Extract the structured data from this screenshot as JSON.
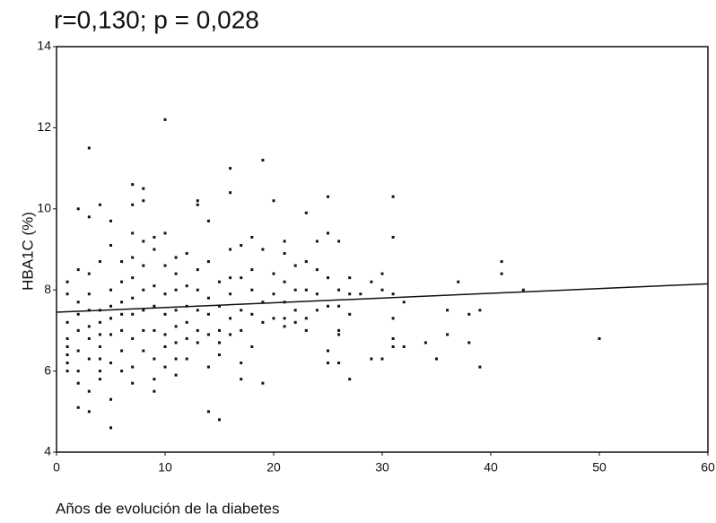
{
  "chart_data": {
    "type": "scatter",
    "title": "r=0,130; p = 0,028",
    "x_label": "Años de evolución de la diabetes",
    "y_label": "HBA1C (%)",
    "xlim": [
      0,
      60
    ],
    "ylim": [
      4,
      14
    ],
    "xticks": [
      0,
      10,
      20,
      30,
      40,
      50,
      60
    ],
    "yticks": [
      4,
      6,
      8,
      10,
      12,
      14
    ],
    "color": "#111111",
    "trend": {
      "x": [
        0,
        60
      ],
      "y": [
        7.45,
        8.15
      ]
    },
    "x": [
      1,
      1,
      1,
      1,
      1,
      1,
      1,
      1,
      2,
      2,
      2,
      2,
      2,
      2,
      2,
      2,
      2,
      3,
      3,
      3,
      3,
      3,
      3,
      3,
      3,
      3,
      3,
      4,
      4,
      4,
      4,
      4,
      4,
      4,
      4,
      4,
      5,
      5,
      5,
      5,
      5,
      5,
      5,
      5,
      5,
      6,
      6,
      6,
      6,
      6,
      6,
      6,
      7,
      7,
      7,
      7,
      7,
      7,
      7,
      7,
      7,
      7,
      8,
      8,
      8,
      8,
      8,
      8,
      8,
      8,
      9,
      9,
      9,
      9,
      9,
      9,
      9,
      9,
      10,
      10,
      10,
      10,
      10,
      10,
      10,
      10,
      11,
      11,
      11,
      11,
      11,
      11,
      11,
      11,
      12,
      12,
      12,
      12,
      12,
      12,
      13,
      13,
      13,
      13,
      13,
      13,
      13,
      14,
      14,
      14,
      14,
      14,
      14,
      14,
      15,
      15,
      15,
      15,
      15,
      15,
      16,
      16,
      16,
      16,
      16,
      16,
      16,
      17,
      17,
      17,
      17,
      17,
      17,
      18,
      18,
      18,
      18,
      18,
      19,
      19,
      19,
      19,
      19,
      20,
      20,
      20,
      20,
      21,
      21,
      21,
      21,
      21,
      21,
      22,
      22,
      22,
      22,
      23,
      23,
      23,
      23,
      23,
      24,
      24,
      24,
      24,
      25,
      25,
      25,
      25,
      25,
      25,
      26,
      26,
      26,
      26,
      26,
      26,
      27,
      27,
      27,
      27,
      28,
      29,
      29,
      30,
      30,
      30,
      31,
      31,
      31,
      31,
      31,
      31,
      32,
      32,
      34,
      35,
      36,
      36,
      37,
      38,
      38,
      39,
      39,
      41,
      41,
      43,
      50
    ],
    "values": [
      8.2,
      7.9,
      6.8,
      6.6,
      6.4,
      6.2,
      6.0,
      7.2,
      10.0,
      8.5,
      7.4,
      7.0,
      6.5,
      6.0,
      5.7,
      5.1,
      7.7,
      11.5,
      9.8,
      8.4,
      7.9,
      7.1,
      6.8,
      6.3,
      5.5,
      5.0,
      7.5,
      10.1,
      8.7,
      7.5,
      7.2,
      6.9,
      6.6,
      6.3,
      6.0,
      5.8,
      9.7,
      9.1,
      8.0,
      7.3,
      6.9,
      6.2,
      5.3,
      4.6,
      7.6,
      8.7,
      8.2,
      7.7,
      7.4,
      7.0,
      6.5,
      6.0,
      10.6,
      10.1,
      9.4,
      8.8,
      8.3,
      7.8,
      7.4,
      6.8,
      6.1,
      5.7,
      10.5,
      10.2,
      9.2,
      8.6,
      8.0,
      7.5,
      7.0,
      6.5,
      9.3,
      9.0,
      8.1,
      7.6,
      7.0,
      6.3,
      5.8,
      5.5,
      12.2,
      9.4,
      8.6,
      7.9,
      7.4,
      6.9,
      6.6,
      6.1,
      8.8,
      8.4,
      8.0,
      7.5,
      7.1,
      6.7,
      6.3,
      5.9,
      8.9,
      8.1,
      7.6,
      7.2,
      6.8,
      6.3,
      10.2,
      10.1,
      8.5,
      8.0,
      7.5,
      7.0,
      6.7,
      9.7,
      8.7,
      7.8,
      7.4,
      6.9,
      6.1,
      5.0,
      8.2,
      7.6,
      7.0,
      6.7,
      6.4,
      4.8,
      11.0,
      10.4,
      9.0,
      8.3,
      7.9,
      7.3,
      6.9,
      9.1,
      8.3,
      7.5,
      7.0,
      6.2,
      5.8,
      9.3,
      8.5,
      8.0,
      7.4,
      6.6,
      11.2,
      9.0,
      7.7,
      7.2,
      5.7,
      10.2,
      8.4,
      7.9,
      7.3,
      9.2,
      8.9,
      8.2,
      7.7,
      7.3,
      7.1,
      8.6,
      8.0,
      7.5,
      7.2,
      9.9,
      8.7,
      8.0,
      7.3,
      7.0,
      9.2,
      8.5,
      7.9,
      7.5,
      10.3,
      9.4,
      8.3,
      7.6,
      6.5,
      6.2,
      9.2,
      8.0,
      7.6,
      7.0,
      6.9,
      6.2,
      8.3,
      7.9,
      7.4,
      5.8,
      7.9,
      8.2,
      6.3,
      8.4,
      8.0,
      6.3,
      10.3,
      9.3,
      7.9,
      7.3,
      6.8,
      6.6,
      7.7,
      6.6,
      6.7,
      6.3,
      7.5,
      6.9,
      8.2,
      7.4,
      6.7,
      7.5,
      6.1,
      8.7,
      8.4,
      8.0,
      6.8
    ]
  }
}
